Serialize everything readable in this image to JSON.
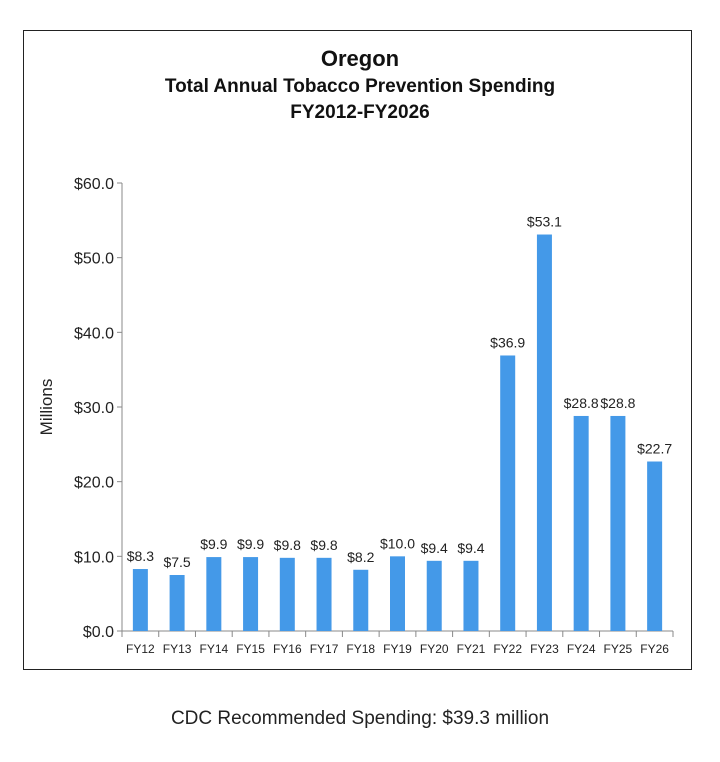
{
  "chart_data": {
    "type": "bar",
    "title": "Oregon",
    "subtitle": [
      "Total Annual Tobacco Prevention Spending",
      "FY2012-FY2026"
    ],
    "ylabel": "Millions",
    "xlabel": "",
    "ylim": [
      0,
      60
    ],
    "yticks": [
      "$0.0",
      "$10.0",
      "$20.0",
      "$30.0",
      "$40.0",
      "$50.0",
      "$60.0"
    ],
    "categories": [
      "FY12",
      "FY13",
      "FY14",
      "FY15",
      "FY16",
      "FY17",
      "FY18",
      "FY19",
      "FY20",
      "FY21",
      "FY22",
      "FY23",
      "FY24",
      "FY25",
      "FY26"
    ],
    "values": [
      8.3,
      7.5,
      9.9,
      9.9,
      9.8,
      9.8,
      8.2,
      10.0,
      9.4,
      9.4,
      36.9,
      53.1,
      28.8,
      28.8,
      22.7
    ],
    "data_labels": [
      "$8.3",
      "$7.5",
      "$9.9",
      "$9.9",
      "$9.8",
      "$9.8",
      "$8.2",
      "$10.0",
      "$9.4",
      "$9.4",
      "$36.9",
      "$53.1",
      "$28.8",
      "$28.8",
      "$22.7"
    ],
    "bar_color": "#4499e8",
    "grid": false,
    "legend": "none"
  },
  "footer": "CDC Recommended Spending: $39.3 million"
}
